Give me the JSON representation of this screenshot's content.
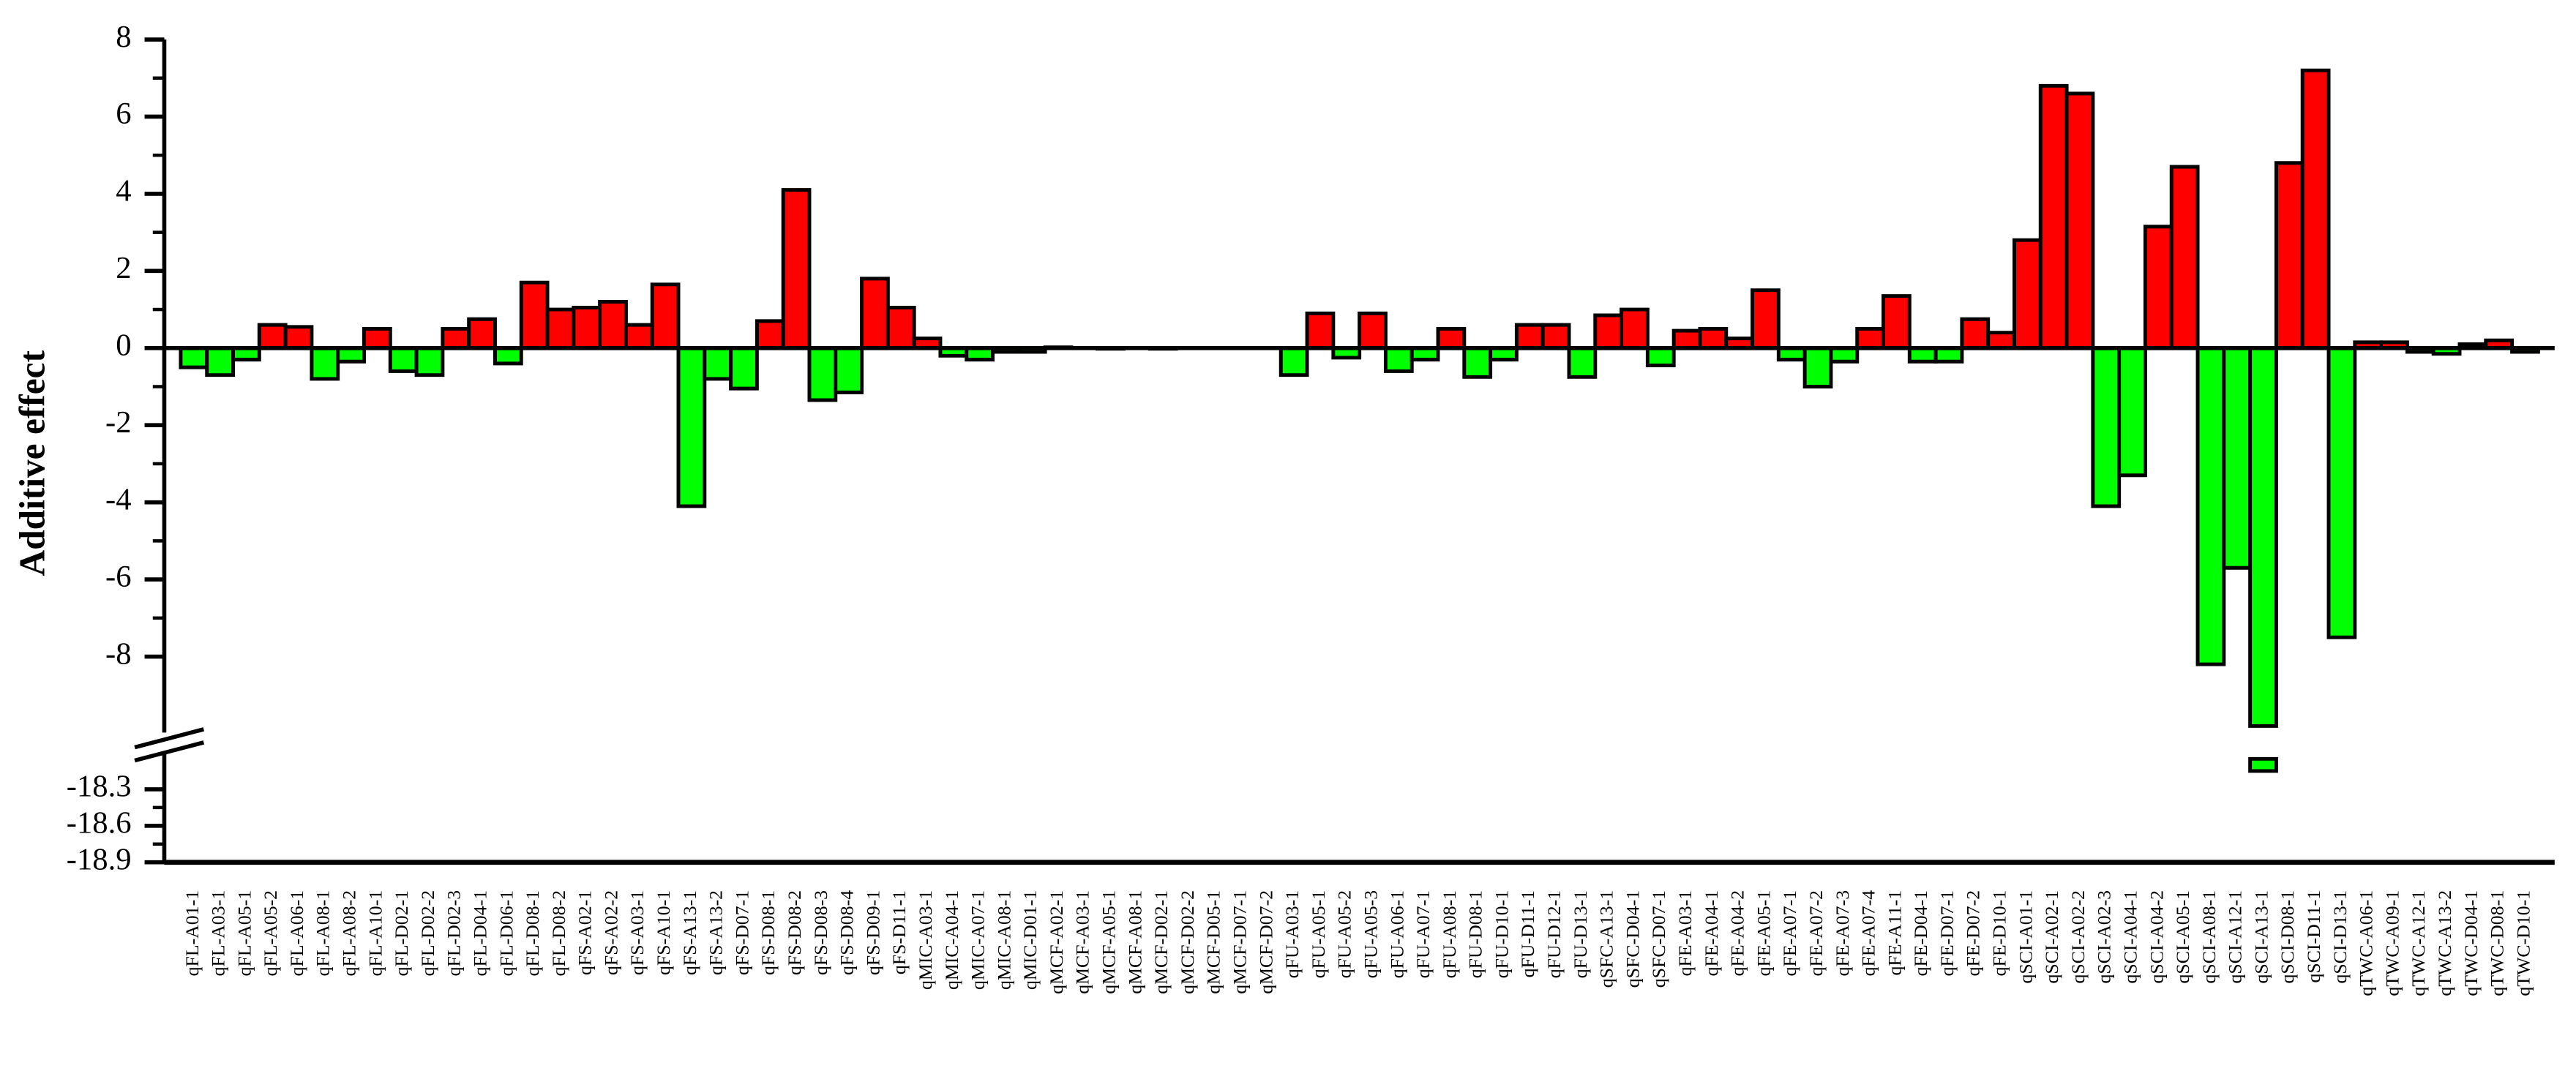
{
  "chart_data": {
    "type": "bar",
    "y_label": "Additive effect",
    "categories": [
      "qFL-A01-1",
      "qFL-A03-1",
      "qFL-A05-1",
      "qFL-A05-2",
      "qFL-A06-1",
      "qFL-A08-1",
      "qFL-A08-2",
      "qFL-A10-1",
      "qFL-D02-1",
      "qFL-D02-2",
      "qFL-D02-3",
      "qFL-D04-1",
      "qFL-D06-1",
      "qFL-D08-1",
      "qFL-D08-2",
      "qFS-A02-1",
      "qFS-A02-2",
      "qFS-A03-1",
      "qFS-A10-1",
      "qFS-A13-1",
      "qFS-A13-2",
      "qFS-D07-1",
      "qFS-D08-1",
      "qFS-D08-2",
      "qFS-D08-3",
      "qFS-D08-4",
      "qFS-D09-1",
      "qFS-D11-1",
      "qMIC-A03-1",
      "qMIC-A04-1",
      "qMIC-A07-1",
      "qMIC-A08-1",
      "qMIC-D01-1",
      "qMCF-A02-1",
      "qMCF-A03-1",
      "qMCF-A05-1",
      "qMCF-A08-1",
      "qMCF-D02-1",
      "qMCF-D02-2",
      "qMCF-D05-1",
      "qMCF-D07-1",
      "qMCF-D07-2",
      "qFU-A03-1",
      "qFU-A05-1",
      "qFU-A05-2",
      "qFU-A05-3",
      "qFU-A06-1",
      "qFU-A07-1",
      "qFU-A08-1",
      "qFU-D08-1",
      "qFU-D10-1",
      "qFU-D11-1",
      "qFU-D12-1",
      "qFU-D13-1",
      "qSFC-A13-1",
      "qSFC-D04-1",
      "qSFC-D07-1",
      "qFE-A03-1",
      "qFE-A04-1",
      "qFE-A04-2",
      "qFE-A05-1",
      "qFE-A07-1",
      "qFE-A07-2",
      "qFE-A07-3",
      "qFE-A07-4",
      "qFE-A11-1",
      "qFE-D04-1",
      "qFE-D07-1",
      "qFE-D07-2",
      "qFE-D10-1",
      "qSCI-A01-1",
      "qSCI-A02-1",
      "qSCI-A02-2",
      "qSCI-A02-3",
      "qSCI-A04-1",
      "qSCI-A04-2",
      "qSCI-A05-1",
      "qSCI-A08-1",
      "qSCI-A12-1",
      "qSCI-A13-1",
      "qSCI-D08-1",
      "qSCI-D11-1",
      "qSCI-D13-1",
      "qTWC-A06-1",
      "qTWC-A09-1",
      "qTWC-A12-1",
      "qTWC-A13-2",
      "qTWC-D04-1",
      "qTWC-D08-1",
      "qTWC-D10-1"
    ],
    "values": [
      -0.5,
      -0.7,
      -0.3,
      0.6,
      0.55,
      -0.8,
      -0.35,
      0.5,
      -0.6,
      -0.7,
      0.5,
      0.75,
      -0.4,
      1.7,
      1.0,
      1.05,
      1.2,
      0.6,
      1.65,
      -4.1,
      -0.8,
      -1.05,
      0.7,
      4.1,
      -1.35,
      -1.15,
      1.8,
      1.05,
      0.25,
      -0.2,
      -0.3,
      -0.1,
      -0.1,
      0.02,
      0,
      -0.02,
      0,
      -0.02,
      0,
      0,
      0,
      0,
      -0.7,
      0.9,
      -0.25,
      0.9,
      -0.6,
      -0.3,
      0.5,
      -0.75,
      -0.3,
      0.6,
      0.6,
      -0.75,
      0.85,
      1.0,
      -0.45,
      0.45,
      0.5,
      0.25,
      1.5,
      -0.3,
      -1.0,
      -0.35,
      0.5,
      1.35,
      -0.35,
      -0.35,
      0.75,
      0.4,
      2.8,
      6.8,
      6.6,
      -4.1,
      -3.3,
      3.15,
      4.7,
      -8.2,
      -5.7,
      -18.15,
      4.8,
      7.2,
      -7.5,
      0.15,
      0.15,
      -0.1,
      -0.15,
      0.1,
      0.2,
      -0.1
    ],
    "colors": {
      "positive": "#ff0000",
      "negative": "#00ff00"
    },
    "axis_segments": [
      {
        "ylim": [
          -9.8,
          8
        ],
        "yticks": [
          -8,
          -6,
          -4,
          -2,
          0,
          2,
          4,
          6,
          8
        ]
      },
      {
        "ylim": [
          -18.9,
          -18.05
        ],
        "yticks": [
          -18.3,
          -18.6,
          -18.9
        ]
      }
    ]
  }
}
